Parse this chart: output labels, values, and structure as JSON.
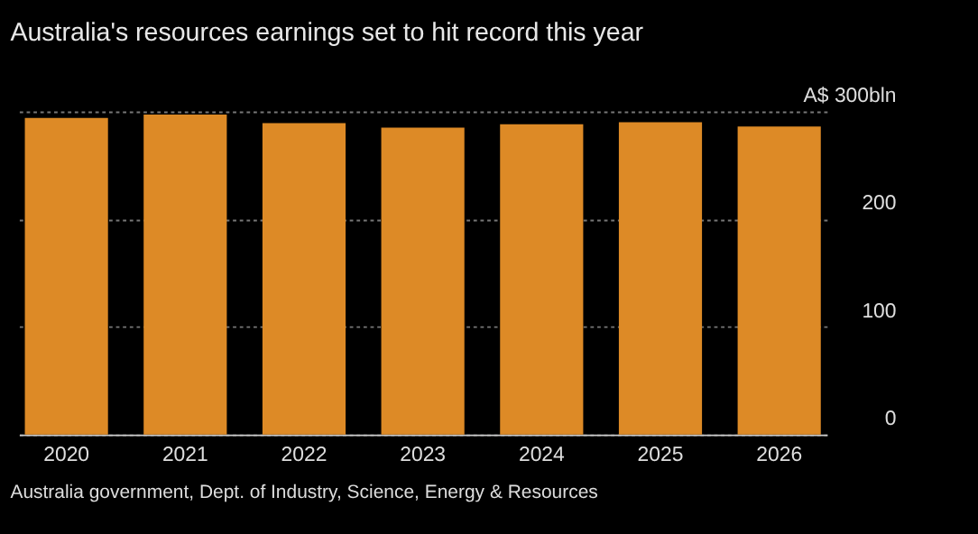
{
  "chart_data": {
    "type": "bar",
    "title": "Australia's resources earnings set to hit record this year",
    "categories": [
      "2020",
      "2021",
      "2022",
      "2023",
      "2024",
      "2025",
      "2026"
    ],
    "values": [
      294,
      297,
      289,
      285,
      288,
      290,
      286
    ],
    "color": "#dd8a26",
    "ylim": [
      0,
      300
    ],
    "yticks": [
      0,
      100,
      200,
      {
        "value": 300,
        "label": "A$ 300bln"
      }
    ],
    "grid": "y",
    "annotations": [
      "Australia government, Dept. of Industry, Science, Energy & Resources"
    ]
  }
}
